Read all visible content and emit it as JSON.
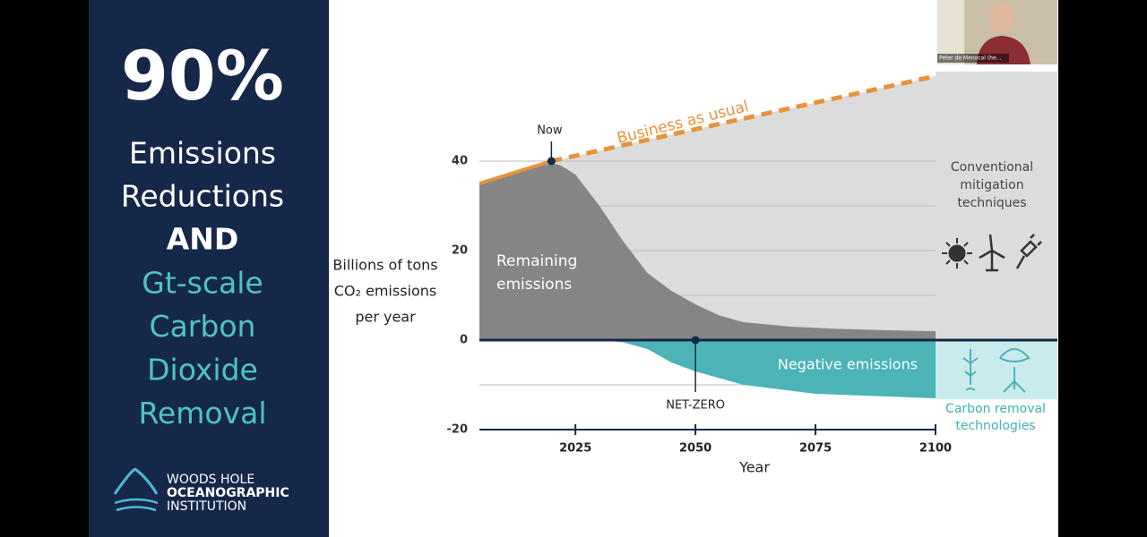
{
  "webcam": {
    "name": "Peter de Menocal (he..."
  },
  "side_panel": {
    "headline": "90%",
    "lines": [
      "Emissions",
      "Reductions",
      "AND"
    ],
    "highlight_lines": [
      "Gt-scale",
      "Carbon",
      "Dioxide",
      "Removal"
    ],
    "logo_lines": [
      "WOODS HOLE",
      "OCEANOGRAPHIC",
      "INSTITUTION"
    ]
  },
  "chart_data": {
    "type": "area",
    "x_label": "Year",
    "y_label_lines": [
      "Billions of tons",
      "CO₂ emissions",
      "per year"
    ],
    "xlim": [
      2005,
      2100
    ],
    "xticks": [
      2025,
      2050,
      2075,
      2100
    ],
    "ylim": [
      -20,
      60
    ],
    "yticks": [
      -20,
      0,
      20,
      40
    ],
    "minor_yticks": [
      -10,
      10,
      30
    ],
    "series": [
      {
        "name": "Remaining emissions",
        "color": "#858585",
        "x": [
          2005,
          2010,
          2015,
          2020,
          2022,
          2025,
          2030,
          2035,
          2040,
          2045,
          2050,
          2055,
          2060,
          2070,
          2080,
          2090,
          2100
        ],
        "values": [
          35,
          36.5,
          38,
          39.6,
          39,
          37,
          30,
          22,
          15,
          11,
          8,
          5.5,
          4,
          3,
          2.5,
          2.2,
          2
        ]
      },
      {
        "name": "Negative emissions",
        "color": "#4cb3b6",
        "x": [
          2005,
          2030,
          2035,
          2040,
          2045,
          2050,
          2060,
          2075,
          2100
        ],
        "values": [
          0,
          0,
          -0.5,
          -2,
          -5,
          -7,
          -10,
          -12,
          -13
        ]
      },
      {
        "name": "Business as usual",
        "color": "#e8923a",
        "x": [
          2005,
          2020,
          2100
        ],
        "values": [
          35,
          40,
          59
        ]
      }
    ],
    "markers": [
      {
        "label": "Now",
        "x": 2020,
        "value": 40
      },
      {
        "label": "NET-ZERO",
        "x": 2050,
        "value": 0
      }
    ],
    "annotations": {
      "conventional": [
        "Conventional",
        "mitigation",
        "techniques"
      ],
      "removal": [
        "Carbon removal",
        "technologies"
      ]
    }
  }
}
